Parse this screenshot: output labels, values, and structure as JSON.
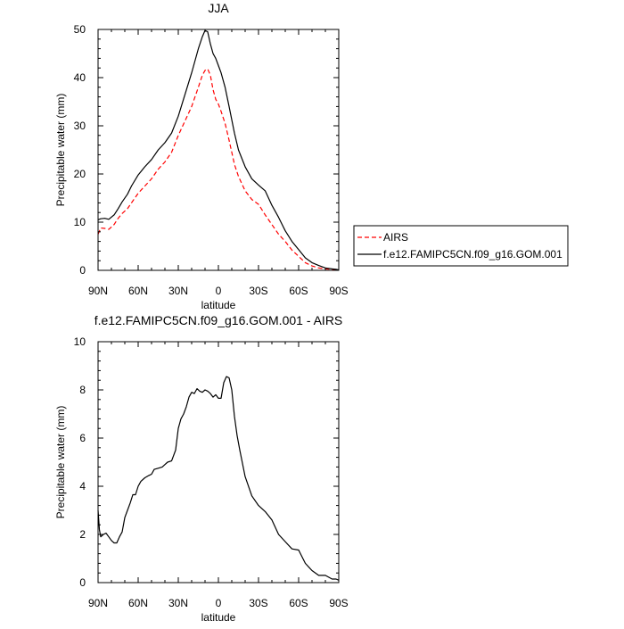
{
  "chart_data": [
    {
      "type": "line",
      "title": "JJA",
      "xlabel": "latitude",
      "ylabel": "Precipitable water (mm)",
      "xlim": [
        -90,
        90
      ],
      "ylim": [
        0,
        50
      ],
      "xticks": [
        -90,
        -60,
        -30,
        0,
        30,
        60,
        90
      ],
      "xtick_labels": [
        "90N",
        "60N",
        "30N",
        "0",
        "30S",
        "60S",
        "90S"
      ],
      "yticks": [
        0,
        10,
        20,
        30,
        40,
        50
      ],
      "ytick_labels": [
        "0",
        "10",
        "20",
        "30",
        "40",
        "50"
      ],
      "legend_position": "right",
      "series": [
        {
          "name": "AIRS",
          "style": "dashed",
          "color": "#ff0000",
          "x": [
            -90,
            -88,
            -85,
            -82,
            -78,
            -75,
            -72,
            -68,
            -65,
            -60,
            -55,
            -50,
            -45,
            -40,
            -35,
            -30,
            -25,
            -20,
            -15,
            -12,
            -10,
            -8,
            -6,
            -4,
            -2,
            0,
            2,
            5,
            8,
            12,
            15,
            20,
            25,
            30,
            35,
            40,
            45,
            50,
            55,
            60,
            65,
            70,
            75,
            80,
            85,
            88,
            90
          ],
          "y": [
            7.5,
            8.8,
            8.7,
            8.5,
            9.5,
            10.8,
            11.8,
            12.8,
            14,
            16,
            17.5,
            19,
            21,
            22.5,
            24.5,
            28,
            31,
            34,
            38,
            40.5,
            41.5,
            41.8,
            40.5,
            37.5,
            35.5,
            34.5,
            33,
            30.5,
            27,
            22,
            19.5,
            16.5,
            14.7,
            13.7,
            11.5,
            9.5,
            7.5,
            6,
            4.2,
            2.9,
            1.6,
            0.9,
            0.5,
            0.3,
            0.2,
            0.1,
            0.1
          ]
        },
        {
          "name": "f.e12.FAMIPC5CN.f09_g16.GOM.001",
          "style": "solid",
          "color": "#000000",
          "x": [
            -90,
            -88,
            -85,
            -82,
            -78,
            -75,
            -72,
            -68,
            -65,
            -60,
            -55,
            -50,
            -45,
            -40,
            -35,
            -30,
            -25,
            -20,
            -15,
            -12,
            -10,
            -8,
            -6,
            -4,
            -2,
            0,
            2,
            5,
            8,
            12,
            15,
            20,
            25,
            30,
            35,
            40,
            45,
            50,
            55,
            60,
            65,
            70,
            75,
            80,
            85,
            88,
            90
          ],
          "y": [
            10.5,
            10.7,
            10.8,
            10.6,
            11.5,
            12.8,
            14.2,
            15.8,
            17.5,
            19.8,
            21.5,
            23,
            25,
            26.5,
            28.5,
            32,
            36.5,
            41,
            46,
            48.5,
            49.8,
            49.5,
            47,
            45,
            44,
            42.5,
            41,
            38,
            34,
            28.5,
            25,
            21.5,
            19,
            17.7,
            16.5,
            13.5,
            11,
            8.2,
            6,
            4.3,
            2.6,
            1.6,
            1,
            0.5,
            0.3,
            0.2,
            0.1
          ]
        }
      ]
    },
    {
      "type": "line",
      "title": "f.e12.FAMIPC5CN.f09_g16.GOM.001 - AIRS",
      "xlabel": "latitude",
      "ylabel": "Precipitable water (mm)",
      "xlim": [
        -90,
        90
      ],
      "ylim": [
        0,
        10
      ],
      "xticks": [
        -90,
        -60,
        -30,
        0,
        30,
        60,
        90
      ],
      "xtick_labels": [
        "90N",
        "60N",
        "30N",
        "0",
        "30S",
        "60S",
        "90S"
      ],
      "yticks": [
        0,
        2,
        4,
        6,
        8,
        10
      ],
      "ytick_labels": [
        "0",
        "2",
        "4",
        "6",
        "8",
        "10"
      ],
      "series": [
        {
          "style": "solid",
          "color": "#000000",
          "x": [
            -90,
            -89,
            -88,
            -86,
            -84,
            -82,
            -80,
            -78,
            -76,
            -74,
            -72,
            -70,
            -68,
            -66,
            -64,
            -62,
            -60,
            -58,
            -55,
            -52,
            -50,
            -48,
            -45,
            -42,
            -40,
            -38,
            -35,
            -32,
            -30,
            -28,
            -26,
            -24,
            -22,
            -20,
            -18,
            -16,
            -14,
            -12,
            -10,
            -8,
            -6,
            -4,
            -2,
            0,
            2,
            4,
            6,
            8,
            10,
            12,
            14,
            16,
            20,
            25,
            30,
            35,
            40,
            45,
            50,
            55,
            60,
            65,
            70,
            75,
            80,
            85,
            88,
            90
          ],
          "y": [
            3.0,
            2.2,
            1.9,
            2.0,
            2.05,
            1.9,
            1.75,
            1.65,
            1.65,
            1.9,
            2.1,
            2.7,
            3.0,
            3.3,
            3.65,
            3.65,
            4.0,
            4.2,
            4.35,
            4.45,
            4.5,
            4.7,
            4.75,
            4.8,
            4.9,
            5.0,
            5.05,
            5.5,
            6.4,
            6.8,
            7.0,
            7.3,
            7.7,
            7.9,
            7.85,
            8.05,
            7.95,
            7.9,
            8.0,
            7.95,
            7.85,
            7.7,
            7.8,
            7.65,
            7.65,
            8.3,
            8.55,
            8.5,
            8.0,
            6.9,
            6.1,
            5.5,
            4.4,
            3.6,
            3.2,
            2.95,
            2.6,
            2.0,
            1.7,
            1.4,
            1.35,
            0.8,
            0.5,
            0.3,
            0.3,
            0.15,
            0.15,
            0.1
          ]
        }
      ]
    }
  ]
}
